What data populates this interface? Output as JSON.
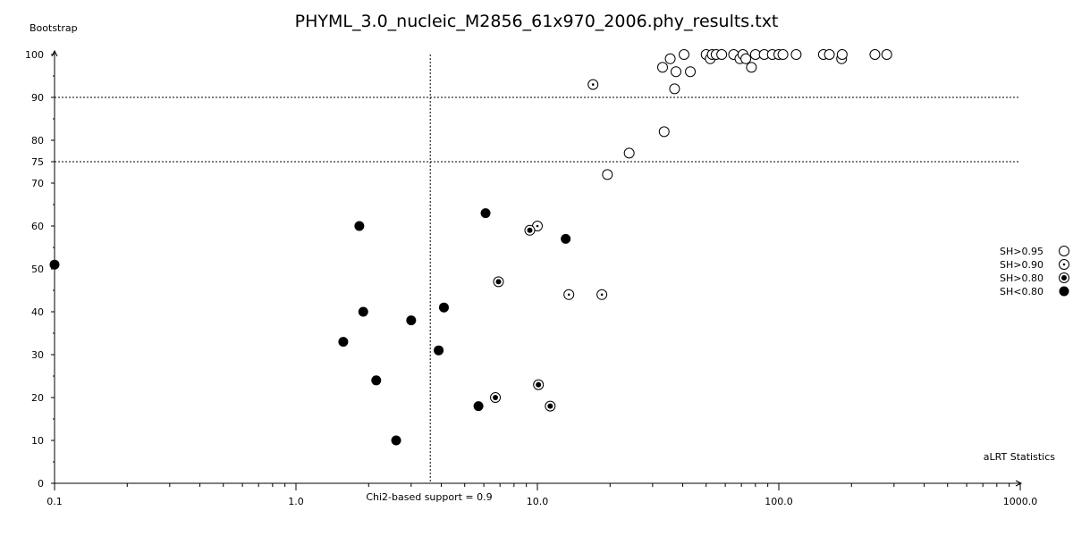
{
  "chart_data": {
    "type": "scatter",
    "title": "PHYML_3.0_nucleic_M2856_61x970_2006.phy_results.txt",
    "xlabel": "aLRT Statistics",
    "ylabel": "Bootstrap",
    "xscale": "log",
    "xlim": [
      0.1,
      1000.0
    ],
    "ylim": [
      0,
      100
    ],
    "x_ticks": [
      "0.1",
      "1.0",
      "10.0",
      "100.0",
      "1000.0"
    ],
    "y_ticks": [
      0,
      10,
      20,
      30,
      40,
      50,
      60,
      70,
      75,
      80,
      90,
      100
    ],
    "legend_position": "right",
    "threshold_lines": {
      "vertical": {
        "x": 3.6,
        "label": "Chi2-based support = 0.9"
      },
      "horizontal": [
        75,
        90
      ]
    },
    "series": [
      {
        "name": "SH>0.95",
        "marker": "open-circle",
        "points": [
          [
            33,
            97
          ],
          [
            35.5,
            99
          ],
          [
            37.5,
            96
          ],
          [
            40.5,
            100
          ],
          [
            43,
            96
          ],
          [
            37,
            92
          ],
          [
            50,
            100
          ],
          [
            52,
            99
          ],
          [
            53,
            100
          ],
          [
            55,
            100
          ],
          [
            58,
            100
          ],
          [
            65,
            100
          ],
          [
            69,
            99
          ],
          [
            71,
            100
          ],
          [
            73,
            99
          ],
          [
            77,
            97
          ],
          [
            80,
            100
          ],
          [
            87,
            100
          ],
          [
            94,
            100
          ],
          [
            100,
            100
          ],
          [
            104,
            100
          ],
          [
            118,
            100
          ],
          [
            153,
            100
          ],
          [
            162,
            100
          ],
          [
            182,
            99
          ],
          [
            183,
            100
          ],
          [
            250,
            100
          ],
          [
            280,
            100
          ],
          [
            33.5,
            82
          ],
          [
            24,
            77
          ],
          [
            19.5,
            72
          ]
        ]
      },
      {
        "name": "SH>0.90",
        "marker": "dot-circle",
        "points": [
          [
            17,
            93
          ],
          [
            10,
            60
          ],
          [
            13.5,
            44
          ],
          [
            18.5,
            44
          ]
        ]
      },
      {
        "name": "SH>0.80",
        "marker": "ring-dot",
        "points": [
          [
            9.3,
            59
          ],
          [
            6.9,
            47
          ],
          [
            6.7,
            20
          ],
          [
            10.1,
            23
          ],
          [
            11.3,
            18
          ]
        ]
      },
      {
        "name": "SH<0.80",
        "marker": "filled-circle",
        "points": [
          [
            0.1,
            51
          ],
          [
            1.83,
            60
          ],
          [
            6.1,
            63
          ],
          [
            13.1,
            57
          ],
          [
            1.9,
            40
          ],
          [
            4.1,
            41
          ],
          [
            3.0,
            38
          ],
          [
            1.57,
            33
          ],
          [
            3.9,
            31
          ],
          [
            2.15,
            24
          ],
          [
            5.7,
            18
          ],
          [
            2.6,
            10
          ]
        ]
      }
    ]
  }
}
